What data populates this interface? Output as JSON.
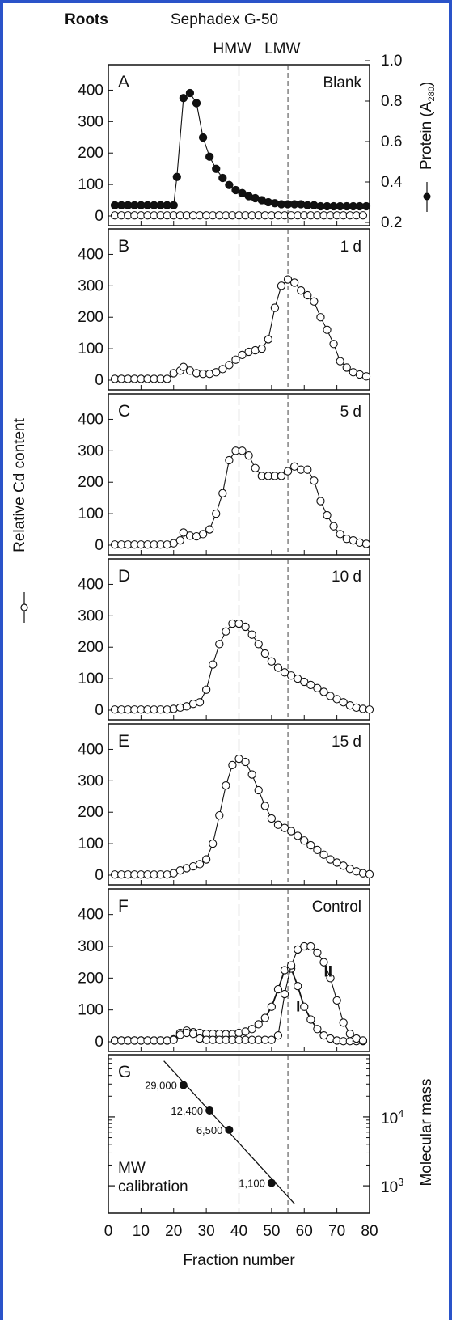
{
  "header": {
    "tissue": "Roots",
    "column": "Sephadex G-50",
    "hmw": "HMW",
    "lmw": "LMW"
  },
  "axes": {
    "y_left_label": "Relative Cd content",
    "y_right_top_label": "Protein (A",
    "y_right_top_sub": "280",
    "y_right_top_close": ")",
    "y_right_bottom_label": "Molecular mass",
    "x_label": "Fraction number",
    "y_ticks": [
      "0",
      "100",
      "200",
      "300",
      "400"
    ],
    "protein_ticks": [
      "0.2",
      "0.4",
      "0.6",
      "0.8",
      "1.0"
    ],
    "x_ticks": [
      "0",
      "10",
      "20",
      "30",
      "40",
      "50",
      "60",
      "70",
      "80"
    ],
    "mw_ticks": [
      {
        "base": "10",
        "exp": "3"
      },
      {
        "base": "10",
        "exp": "4"
      }
    ]
  },
  "chart_data": [
    {
      "panel": "A",
      "condition": "Blank",
      "type": "line",
      "xlim": [
        0,
        80
      ],
      "ylim": [
        0,
        450
      ],
      "y2lim": [
        0.2,
        1.0
      ],
      "series": [
        {
          "name": "Relative Cd content",
          "marker": "open",
          "x": [
            2,
            4,
            6,
            8,
            10,
            12,
            14,
            16,
            18,
            20,
            22,
            24,
            26,
            28,
            30,
            32,
            34,
            36,
            38,
            40,
            42,
            44,
            46,
            48,
            50,
            52,
            54,
            56,
            58,
            60,
            62,
            64,
            66,
            68,
            70,
            72,
            74,
            76,
            78
          ],
          "y": [
            2,
            2,
            2,
            2,
            2,
            2,
            2,
            2,
            2,
            2,
            2,
            2,
            2,
            2,
            2,
            2,
            2,
            2,
            2,
            2,
            2,
            2,
            2,
            2,
            2,
            2,
            2,
            2,
            2,
            2,
            2,
            2,
            2,
            2,
            2,
            2,
            2,
            2,
            2
          ]
        },
        {
          "name": "Protein (A280)",
          "marker": "filled",
          "axis": "right",
          "x": [
            2,
            4,
            6,
            8,
            10,
            12,
            14,
            16,
            18,
            20,
            21,
            23,
            25,
            27,
            29,
            31,
            33,
            35,
            37,
            39,
            41,
            43,
            45,
            47,
            49,
            51,
            53,
            55,
            57,
            59,
            61,
            63,
            65,
            67,
            69,
            71,
            73,
            75,
            77,
            79
          ],
          "y": [
            0.285,
            0.285,
            0.285,
            0.285,
            0.285,
            0.285,
            0.285,
            0.285,
            0.285,
            0.285,
            0.425,
            0.815,
            0.84,
            0.79,
            0.62,
            0.525,
            0.465,
            0.42,
            0.385,
            0.36,
            0.345,
            0.33,
            0.32,
            0.31,
            0.3,
            0.295,
            0.29,
            0.29,
            0.29,
            0.29,
            0.285,
            0.285,
            0.28,
            0.28,
            0.28,
            0.28,
            0.28,
            0.28,
            0.28,
            0.28
          ]
        }
      ]
    },
    {
      "panel": "B",
      "condition": "1 d",
      "type": "line",
      "xlim": [
        0,
        80
      ],
      "ylim": [
        0,
        450
      ],
      "series": [
        {
          "name": "Relative Cd content",
          "marker": "open",
          "x": [
            2,
            4,
            6,
            8,
            10,
            12,
            14,
            16,
            18,
            20,
            22,
            23,
            25,
            27,
            29,
            31,
            33,
            35,
            37,
            39,
            41,
            43,
            45,
            47,
            49,
            51,
            53,
            55,
            57,
            59,
            61,
            63,
            65,
            67,
            69,
            71,
            73,
            75,
            77,
            79
          ],
          "y": [
            4,
            4,
            4,
            4,
            4,
            4,
            4,
            4,
            4,
            22,
            30,
            42,
            30,
            22,
            20,
            20,
            25,
            35,
            48,
            65,
            80,
            90,
            95,
            100,
            130,
            230,
            300,
            320,
            310,
            285,
            270,
            250,
            200,
            160,
            115,
            60,
            40,
            25,
            18,
            12
          ]
        }
      ]
    },
    {
      "panel": "C",
      "condition": "5 d",
      "type": "line",
      "xlim": [
        0,
        80
      ],
      "ylim": [
        0,
        450
      ],
      "series": [
        {
          "name": "Relative Cd content",
          "marker": "open",
          "x": [
            2,
            4,
            6,
            8,
            10,
            12,
            14,
            16,
            18,
            20,
            22,
            23,
            25,
            27,
            29,
            31,
            33,
            35,
            37,
            39,
            41,
            43,
            45,
            47,
            49,
            51,
            53,
            55,
            57,
            59,
            61,
            63,
            65,
            67,
            69,
            71,
            73,
            75,
            77,
            79
          ],
          "y": [
            2,
            2,
            2,
            2,
            2,
            2,
            2,
            2,
            2,
            6,
            15,
            40,
            30,
            28,
            35,
            50,
            100,
            165,
            270,
            300,
            300,
            285,
            245,
            220,
            220,
            220,
            220,
            235,
            250,
            240,
            240,
            205,
            140,
            95,
            60,
            35,
            20,
            15,
            8,
            4
          ]
        }
      ]
    },
    {
      "panel": "D",
      "condition": "10 d",
      "type": "line",
      "xlim": [
        0,
        80
      ],
      "ylim": [
        0,
        450
      ],
      "series": [
        {
          "name": "Relative Cd content",
          "marker": "open",
          "x": [
            2,
            4,
            6,
            8,
            10,
            12,
            14,
            16,
            18,
            20,
            22,
            24,
            26,
            28,
            30,
            32,
            34,
            36,
            38,
            40,
            42,
            44,
            46,
            48,
            50,
            52,
            54,
            56,
            58,
            60,
            62,
            64,
            66,
            68,
            70,
            72,
            74,
            76,
            78,
            80
          ],
          "y": [
            2,
            2,
            2,
            2,
            2,
            2,
            2,
            2,
            2,
            4,
            8,
            12,
            20,
            25,
            65,
            145,
            210,
            250,
            275,
            275,
            265,
            240,
            210,
            180,
            155,
            135,
            120,
            110,
            100,
            90,
            80,
            70,
            58,
            45,
            35,
            25,
            15,
            8,
            4,
            2
          ]
        }
      ]
    },
    {
      "panel": "E",
      "condition": "15 d",
      "type": "line",
      "xlim": [
        0,
        80
      ],
      "ylim": [
        0,
        450
      ],
      "series": [
        {
          "name": "Relative Cd content",
          "marker": "open",
          "x": [
            2,
            4,
            6,
            8,
            10,
            12,
            14,
            16,
            18,
            20,
            22,
            24,
            26,
            28,
            30,
            32,
            34,
            36,
            38,
            40,
            42,
            44,
            46,
            48,
            50,
            52,
            54,
            56,
            58,
            60,
            62,
            64,
            66,
            68,
            70,
            72,
            74,
            76,
            78,
            80
          ],
          "y": [
            2,
            2,
            2,
            2,
            2,
            2,
            2,
            2,
            2,
            6,
            15,
            22,
            28,
            35,
            50,
            100,
            190,
            285,
            350,
            370,
            360,
            320,
            270,
            220,
            180,
            160,
            150,
            140,
            125,
            110,
            95,
            80,
            65,
            50,
            40,
            30,
            20,
            12,
            6,
            3
          ]
        }
      ]
    },
    {
      "panel": "F",
      "condition": "Control",
      "type": "line",
      "xlim": [
        0,
        80
      ],
      "ylim": [
        0,
        450
      ],
      "series": [
        {
          "name": "I",
          "marker": "open",
          "x": [
            2,
            4,
            6,
            8,
            10,
            12,
            14,
            16,
            18,
            20,
            22,
            24,
            26,
            28,
            30,
            32,
            34,
            36,
            38,
            40,
            42,
            44,
            46,
            48,
            50,
            52,
            54,
            56,
            58,
            60,
            62,
            64,
            66,
            68,
            70,
            72,
            74,
            76,
            78
          ],
          "y": [
            4,
            4,
            4,
            4,
            4,
            4,
            4,
            4,
            4,
            8,
            28,
            35,
            30,
            28,
            25,
            25,
            25,
            24,
            24,
            28,
            32,
            40,
            55,
            75,
            110,
            165,
            225,
            230,
            175,
            110,
            70,
            40,
            20,
            10,
            4,
            2,
            2,
            2,
            2
          ]
        },
        {
          "name": "II",
          "marker": "open",
          "x": [
            2,
            4,
            6,
            8,
            10,
            12,
            14,
            16,
            18,
            20,
            22,
            24,
            26,
            28,
            30,
            32,
            34,
            36,
            38,
            40,
            42,
            44,
            46,
            48,
            50,
            52,
            54,
            56,
            58,
            60,
            62,
            64,
            66,
            68,
            70,
            72,
            74,
            76,
            78
          ],
          "y": [
            4,
            4,
            4,
            4,
            4,
            4,
            4,
            4,
            4,
            6,
            22,
            28,
            25,
            10,
            6,
            6,
            6,
            6,
            6,
            6,
            6,
            6,
            6,
            6,
            6,
            20,
            150,
            240,
            290,
            300,
            300,
            280,
            250,
            200,
            130,
            60,
            25,
            10,
            4
          ]
        }
      ]
    },
    {
      "panel": "G",
      "condition": "MW calibration",
      "type": "scatter",
      "xlim": [
        0,
        80
      ],
      "yscale": "log",
      "points": [
        {
          "x": 23,
          "y": 29000,
          "label": "29,000"
        },
        {
          "x": 31,
          "y": 12400,
          "label": "12,400"
        },
        {
          "x": 37,
          "y": 6500,
          "label": "6,500"
        },
        {
          "x": 50,
          "y": 1100,
          "label": "1,100"
        }
      ],
      "fit_line": {
        "x": [
          17,
          57
        ],
        "y": [
          65000,
          550
        ]
      }
    }
  ],
  "reference_lines": {
    "HMW_fraction": 40,
    "LMW_fraction": 55
  }
}
